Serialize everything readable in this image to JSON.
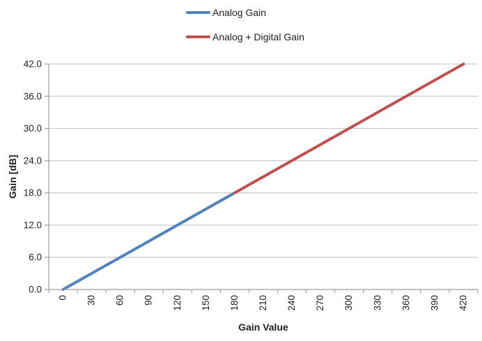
{
  "chart_data": {
    "type": "line",
    "title": "",
    "xlabel": "Gain Value",
    "ylabel": "Gain [dB]",
    "axis_type_x": "category",
    "x_tick_labels": [
      "0",
      "30",
      "60",
      "90",
      "120",
      "150",
      "180",
      "210",
      "240",
      "270",
      "300",
      "330",
      "360",
      "390",
      "420"
    ],
    "y_tick_labels": [
      "0.0",
      "6.0",
      "12.0",
      "18.0",
      "24.0",
      "30.0",
      "36.0",
      "42.0"
    ],
    "xlim": [
      0,
      420
    ],
    "ylim": [
      0,
      42
    ],
    "x_step": 30,
    "y_step": 6,
    "grid": "horizontal-only",
    "legend_position": "top-center",
    "series": [
      {
        "name": "Analog Gain",
        "color": "#4F81BD",
        "points": [
          [
            0,
            0
          ],
          [
            30,
            3
          ],
          [
            60,
            6
          ],
          [
            90,
            9
          ],
          [
            120,
            12
          ],
          [
            150,
            15
          ],
          [
            180,
            18
          ]
        ]
      },
      {
        "name": "Analog + Digital Gain",
        "color": "#C0504D",
        "points": [
          [
            180,
            18
          ],
          [
            210,
            21
          ],
          [
            240,
            24
          ],
          [
            270,
            27
          ],
          [
            300,
            30
          ],
          [
            330,
            33
          ],
          [
            360,
            36
          ],
          [
            390,
            39
          ],
          [
            420,
            42
          ]
        ]
      }
    ],
    "colors": {
      "gridline": "#C9C9C9",
      "axis": "#9E9E9E",
      "text": "#1f1f1f",
      "background": "#FFFFFF"
    }
  }
}
